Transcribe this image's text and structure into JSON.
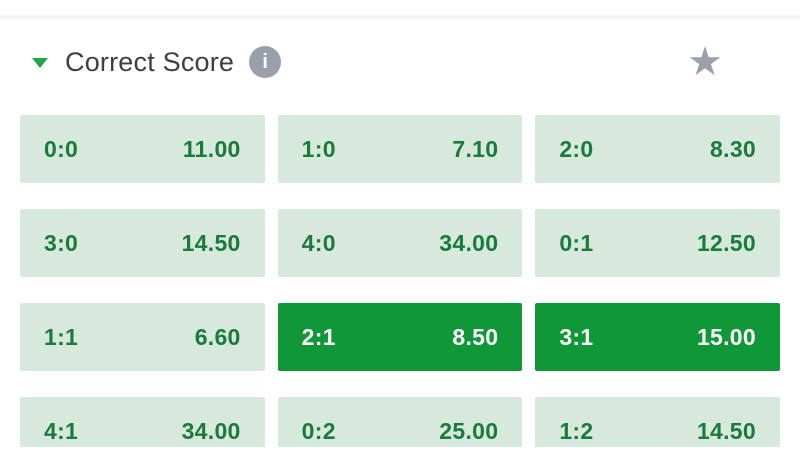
{
  "market": {
    "title": "Correct Score",
    "info_glyph": "i",
    "star_glyph": "★",
    "colors": {
      "arrow_green": "#27a348",
      "header_text": "#3d4043",
      "icon_gray": "#9aa0ab",
      "cell_bg": "#d6e9dc",
      "cell_text_green": "#1b7b3a",
      "selected_bg": "#109737",
      "selected_text": "#ffffff",
      "top_divider": "#f2f3f2"
    },
    "cells": [
      {
        "score": "0:0",
        "odds": "11.00",
        "selected": false
      },
      {
        "score": "1:0",
        "odds": "7.10",
        "selected": false
      },
      {
        "score": "2:0",
        "odds": "8.30",
        "selected": false
      },
      {
        "score": "3:0",
        "odds": "14.50",
        "selected": false
      },
      {
        "score": "4:0",
        "odds": "34.00",
        "selected": false
      },
      {
        "score": "0:1",
        "odds": "12.50",
        "selected": false
      },
      {
        "score": "1:1",
        "odds": "6.60",
        "selected": false
      },
      {
        "score": "2:1",
        "odds": "8.50",
        "selected": true
      },
      {
        "score": "3:1",
        "odds": "15.00",
        "selected": true
      },
      {
        "score": "4:1",
        "odds": "34.00",
        "selected": false
      },
      {
        "score": "0:2",
        "odds": "25.00",
        "selected": false
      },
      {
        "score": "1:2",
        "odds": "14.50",
        "selected": false
      }
    ]
  }
}
